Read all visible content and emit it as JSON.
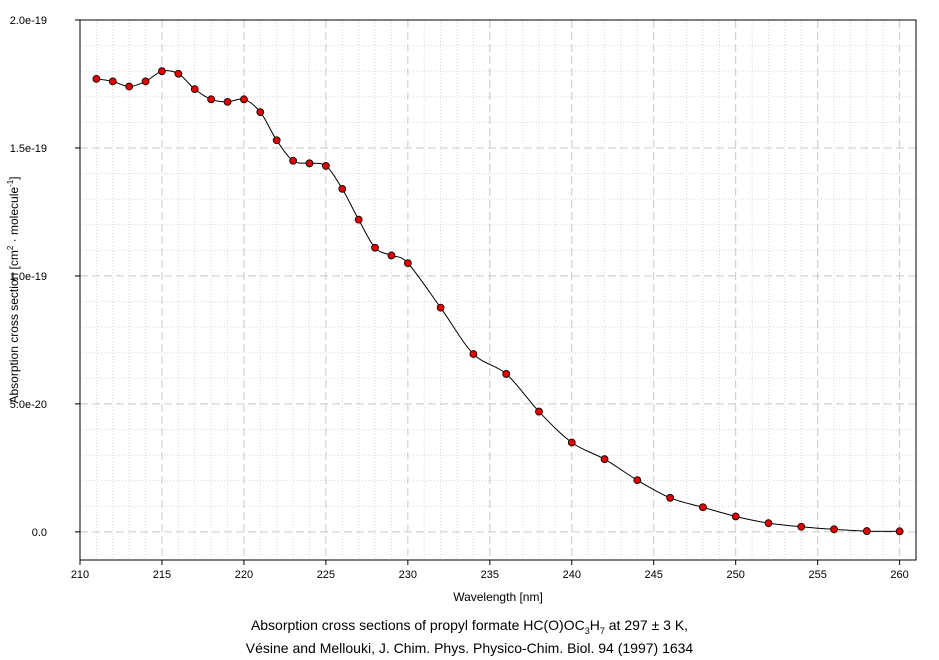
{
  "chart_data": {
    "type": "line",
    "xlabel": "Wavelength [nm]",
    "ylabel": {
      "main": "Absorption cross section [cm",
      "sup1": "2",
      "mid": " · molecule",
      "sup2": "-1",
      "end": "]"
    },
    "xlim": [
      210,
      261
    ],
    "ylim": [
      -1.1e-20,
      2e-19
    ],
    "x_ticks": [
      "210",
      "215",
      "220",
      "225",
      "230",
      "235",
      "240",
      "245",
      "250",
      "255",
      "260"
    ],
    "x_tick_values": [
      210,
      215,
      220,
      225,
      230,
      235,
      240,
      245,
      250,
      255,
      260
    ],
    "y_ticks": [
      "0.0",
      "5.0e-20",
      "1.0e-19",
      "1.5e-19",
      "2.0e-19"
    ],
    "y_tick_values": [
      0,
      5e-20,
      1e-19,
      1.5e-19,
      2e-19
    ],
    "grid": true,
    "series": [
      {
        "x": [
          211,
          212,
          213,
          214,
          215,
          216,
          217,
          218,
          219,
          220,
          221,
          222,
          223,
          224,
          225,
          226,
          227,
          228,
          229,
          230,
          232,
          234,
          236,
          238,
          240,
          242,
          244,
          246,
          248,
          250,
          252,
          254,
          256,
          258,
          260
        ],
        "y": [
          1.77e-19,
          1.76e-19,
          1.74e-19,
          1.76e-19,
          1.8e-19,
          1.79e-19,
          1.73e-19,
          1.69e-19,
          1.68e-19,
          1.69e-19,
          1.64e-19,
          1.53e-19,
          1.45e-19,
          1.44e-19,
          1.43e-19,
          1.34e-19,
          1.22e-19,
          1.11e-19,
          1.08e-19,
          1.05e-19,
          8.76e-20,
          6.95e-20,
          6.17e-20,
          4.7e-20,
          3.49e-20,
          2.84e-20,
          2.02e-20,
          1.33e-20,
          9.6e-21,
          6e-21,
          3.4e-21,
          2e-21,
          1e-21,
          3e-22,
          2e-22
        ]
      }
    ],
    "marker_color": "#e00000",
    "line_color": "#000000"
  },
  "caption": {
    "line1_a": "Absorption cross sections of propyl formate HC(O)OC",
    "line1_sub1": "3",
    "line1_b": "H",
    "line1_sub2": "7",
    "line1_c": " at 297 ± 3 K,",
    "line2": "Vésine and Mellouki, J. Chim. Phys. Physico-Chim. Biol. 94 (1997) 1634"
  }
}
